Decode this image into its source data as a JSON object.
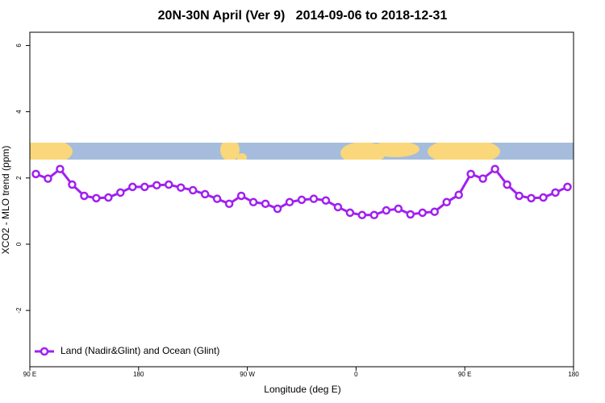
{
  "chart_data": {
    "type": "line",
    "title": "20N-30N April (Ver 9)   2014-09-06 to 2018-12-31",
    "x_label": "Longitude (deg E)",
    "y_label": "XCO2 - MLO trend (ppm)",
    "x": [
      95,
      105,
      115,
      125,
      135,
      145,
      155,
      165,
      175,
      185,
      195,
      205,
      215,
      225,
      235,
      245,
      255,
      265,
      275,
      285,
      295,
      305,
      315,
      325,
      335,
      345,
      355,
      365,
      375,
      385,
      395,
      405,
      415,
      425,
      435,
      445,
      455,
      465,
      475,
      485,
      495,
      505,
      515,
      525,
      535
    ],
    "series": [
      {
        "name": "Land (Nadir&Glint) and Ocean (Glint)",
        "color": "#a020f0",
        "values": [
          2.12,
          1.98,
          2.27,
          1.8,
          1.46,
          1.39,
          1.41,
          1.56,
          1.73,
          1.73,
          1.78,
          1.8,
          1.71,
          1.63,
          1.51,
          1.37,
          1.22,
          1.46,
          1.27,
          1.22,
          1.07,
          1.27,
          1.34,
          1.37,
          1.32,
          1.12,
          0.95,
          0.88,
          0.88,
          1.02,
          1.07,
          0.9,
          0.95,
          0.98,
          1.27,
          1.49,
          2.12,
          1.98,
          2.27,
          1.8,
          1.46,
          1.39,
          1.41,
          1.56,
          1.73
        ]
      }
    ],
    "xlim": [
      90,
      540
    ],
    "xticks": [
      {
        "value": 90,
        "label": "90 E"
      },
      {
        "value": 180,
        "label": "180"
      },
      {
        "value": 270,
        "label": "90 W"
      },
      {
        "value": 360,
        "label": "0"
      },
      {
        "value": 450,
        "label": "90 E"
      },
      {
        "value": 540,
        "label": "180"
      }
    ],
    "ylim": [
      -3.7,
      6.4
    ],
    "yticks": [
      -2,
      0,
      2,
      4,
      6
    ],
    "legend": "bottom-left"
  }
}
